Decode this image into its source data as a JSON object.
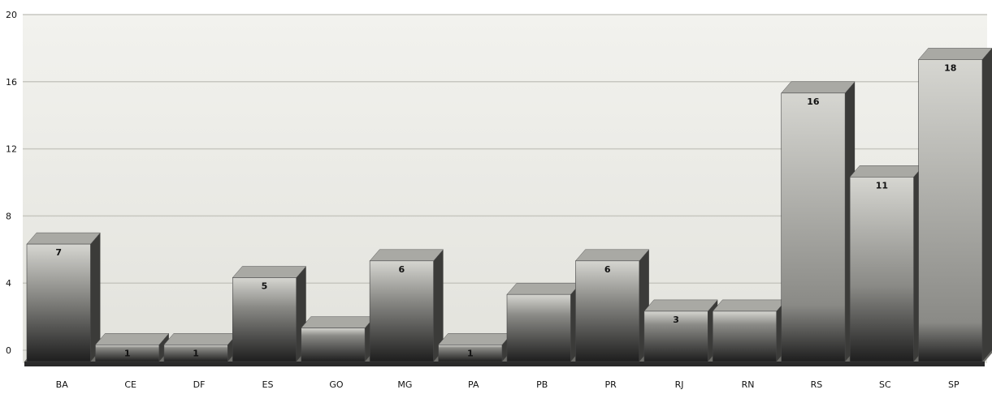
{
  "chart_data": {
    "type": "bar",
    "title": "",
    "xlabel": "",
    "ylabel": "",
    "categories": [
      "BA",
      "CE",
      "DF",
      "ES",
      "GO",
      "MG",
      "PA",
      "PB",
      "PR",
      "RJ",
      "RN",
      "RS",
      "SC",
      "SP"
    ],
    "values": [
      7,
      1,
      1,
      5,
      2,
      6,
      1,
      4,
      6,
      3,
      3,
      16,
      11,
      18
    ],
    "data_labels": [
      "7",
      "1",
      "1",
      "5",
      "",
      "6",
      "1",
      "",
      "6",
      "3",
      "",
      "16",
      "11",
      "18"
    ],
    "ylim": [
      0,
      20
    ],
    "yticks": [
      "0",
      "4",
      "8",
      "12",
      "16",
      "20"
    ],
    "grid": true,
    "legend": "none",
    "colors": {
      "plot_background": "#e9e9e4",
      "gridline": "#c7c7c0",
      "bar_light": "#d6d6d1",
      "bar_dark": "#1e1e1e",
      "floor": "#2a2a2a",
      "label": "#111111"
    }
  }
}
